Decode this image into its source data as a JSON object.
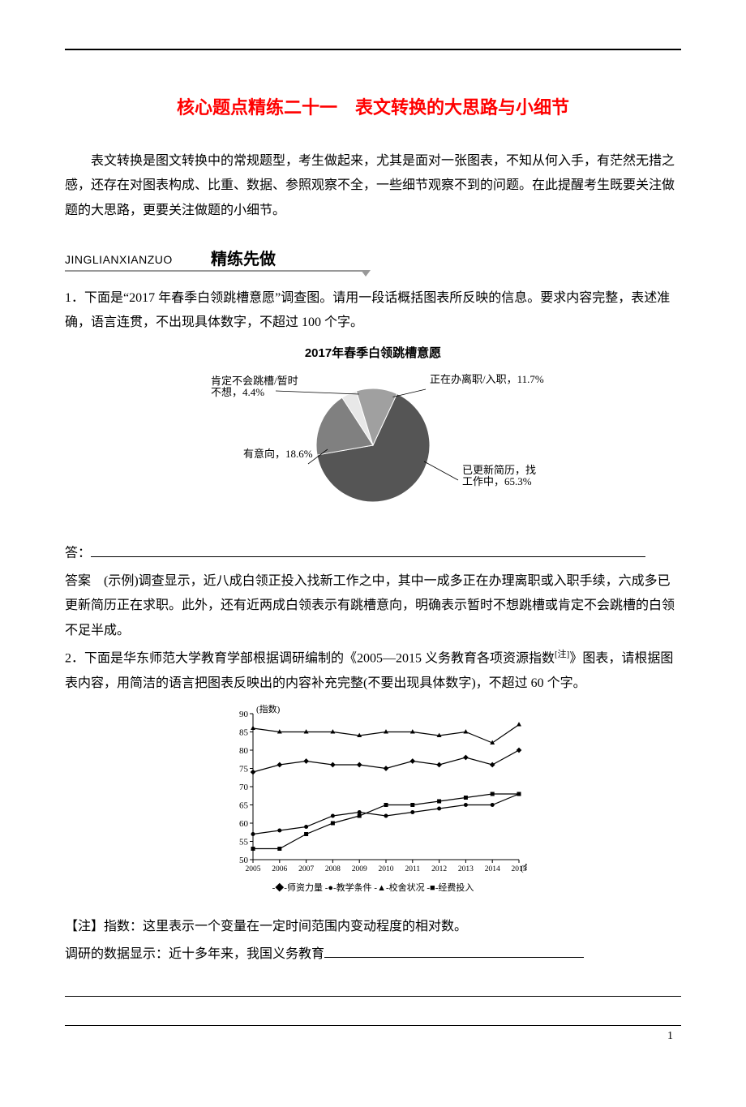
{
  "title": "核心题点精练二十一　表文转换的大思路与小细节",
  "intro": "表文转换是图文转换中的常规题型，考生做起来，尤其是面对一张图表，不知从何入手，有茫然无措之感，还存在对图表构成、比重、数据、参照观察不全，一些细节观察不到的问题。在此提醒考生既要关注做题的大思路，更要关注做题的小细节。",
  "section": {
    "pinyin": "JINGLIANXIANZUO",
    "zh": "精练先做"
  },
  "q1": {
    "text": "1．下面是“2017 年春季白领跳槽意愿”调查图。请用一段话概括图表所反映的信息。要求内容完整，表述准确，语言连贯，不出现具体数字，不超过 100 个字。",
    "answer_label": "答：",
    "answer_prefix": "答案　(示例)",
    "answer_body": "调查显示，近八成白领正投入找新工作之中，其中一成多正在办理离职或入职手续，六成多已更新简历正在求职。此外，还有近两成白领表示有跳槽意向，明确表示暂时不想跳槽或肯定不会跳槽的白领不足半成。"
  },
  "pie_chart": {
    "type": "pie",
    "title": "2017年春季白领跳槽意愿",
    "background_color": "#ffffff",
    "label_fontsize": 13,
    "title_fontsize": 15,
    "slices": [
      {
        "label": "已更新简历，找工作中，65.3%",
        "value": 65.3,
        "color": "#555555"
      },
      {
        "label": "有意向，18.6%",
        "value": 18.6,
        "color": "#808080"
      },
      {
        "label": "肯定不会跳槽/暂时不想，4.4%",
        "value": 4.4,
        "color": "#e8e8e8"
      },
      {
        "label": "正在办离职/入职，11.7%",
        "value": 11.7,
        "color": "#a0a0a0"
      }
    ],
    "radius": 70,
    "start_angle_deg": -65
  },
  "q2": {
    "text_a": "2．下面是华东师范大学教育学部根据调研编制的《2005—2015 义务教育各项资源指数",
    "note_sup": "[注]",
    "text_b": "》图表，请根据图表内容，用简洁的语言把图表反映出的内容补充完整(不要出现具体数字)，不超过 60 个字。",
    "note_label": "【注】",
    "note_body": "指数：这里表示一个变量在一定时间范围内变动程度的相对数。",
    "lead_in": "调研的数据显示：近十多年来，我国义务教育"
  },
  "line_chart": {
    "type": "line",
    "background_color": "#ffffff",
    "x_label_suffix": "(年份)",
    "y_label": "(指数)",
    "label_fontsize": 11,
    "xlim": [
      2005,
      2015
    ],
    "ylim": [
      50,
      90
    ],
    "xtick_step": 1,
    "ytick_step": 5,
    "x_values": [
      2005,
      2006,
      2007,
      2008,
      2009,
      2010,
      2011,
      2012,
      2013,
      2014,
      2015
    ],
    "grid_color": "#000000",
    "line_color": "#000000",
    "marker_size": 5,
    "line_width": 1.2,
    "series": [
      {
        "name": "师资力量",
        "marker": "diamond",
        "y": [
          74,
          76,
          77,
          76,
          76,
          75,
          77,
          76,
          78,
          76,
          80
        ]
      },
      {
        "name": "教学条件",
        "marker": "circle",
        "y": [
          57,
          58,
          59,
          62,
          63,
          62,
          63,
          64,
          65,
          65,
          68
        ]
      },
      {
        "name": "校舍状况",
        "marker": "triangle",
        "y": [
          86,
          85,
          85,
          85,
          84,
          85,
          85,
          84,
          85,
          82,
          87
        ]
      },
      {
        "name": "经费投入",
        "marker": "square",
        "y": [
          53,
          53,
          57,
          60,
          62,
          65,
          65,
          66,
          67,
          68,
          68
        ]
      }
    ],
    "legend_prefix_map": {
      "diamond": "◆",
      "circle": "●",
      "triangle": "▲",
      "square": "■"
    }
  },
  "page_number": "1"
}
